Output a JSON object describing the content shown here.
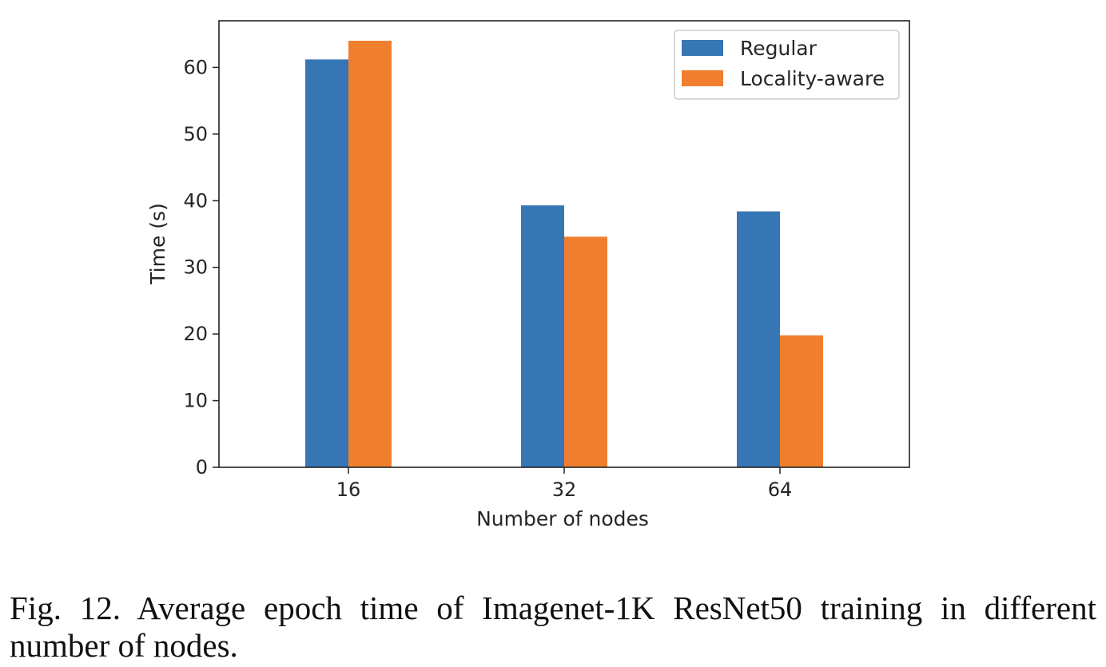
{
  "chart_data": {
    "type": "bar",
    "categories": [
      "16",
      "32",
      "64"
    ],
    "series": [
      {
        "name": "Regular",
        "values": [
          61.2,
          39.3,
          38.4
        ],
        "color": "#3776b5"
      },
      {
        "name": "Locality-aware",
        "values": [
          64.0,
          34.6,
          19.8
        ],
        "color": "#ef7f2f"
      }
    ],
    "xlabel": "Number of nodes",
    "ylabel": "Time (s)",
    "ylim": [
      0,
      67
    ],
    "yticks": [
      0,
      10,
      20,
      30,
      40,
      50,
      60
    ],
    "grid": false,
    "legend_position": "top-right"
  },
  "caption": "Fig. 12.  Average epoch time of Imagenet-1K ResNet50 training in different number of nodes."
}
